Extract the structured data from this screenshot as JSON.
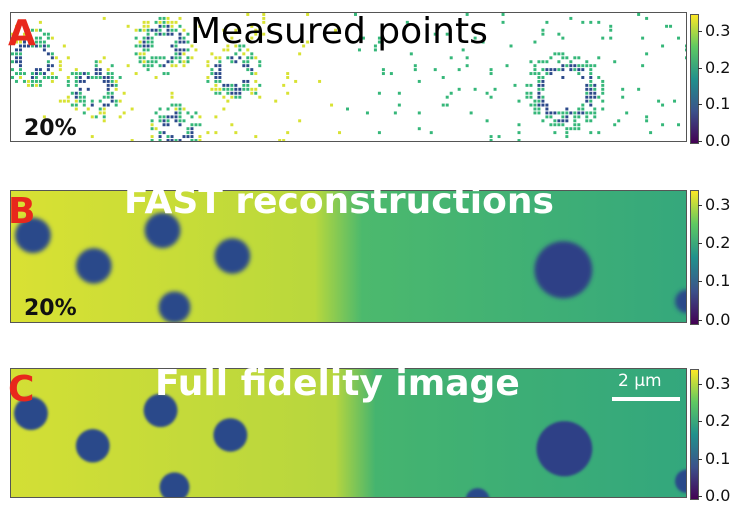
{
  "panels": [
    {
      "letter": "A",
      "title": "Measured points",
      "percent": "20%"
    },
    {
      "letter": "B",
      "title": "FAST reconstructions",
      "percent": "20%"
    },
    {
      "letter": "C",
      "title": "Full fidelity image",
      "percent": ""
    }
  ],
  "colorbar": {
    "ticks": [
      "0.3",
      "0.2",
      "0.1",
      "0.0"
    ],
    "colormap": [
      "#440154",
      "#3b528b",
      "#21918c",
      "#5ec962",
      "#fde725"
    ]
  },
  "scalebar_label": "2 µm",
  "colors": {
    "panel_letter": "#e8281c",
    "high_value": "#d8e233",
    "mid_value": "#35b779",
    "low_value": "#2c4a8a"
  }
}
